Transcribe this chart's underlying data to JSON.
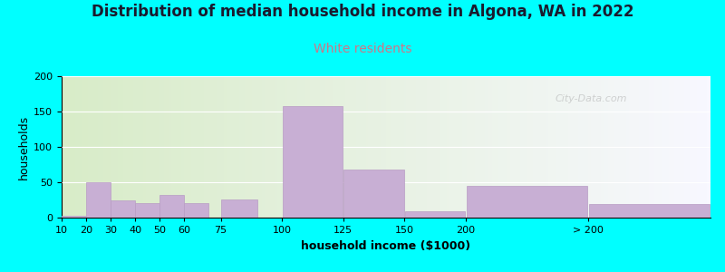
{
  "title": "Distribution of median household income in Algona, WA in 2022",
  "subtitle": "White residents",
  "xlabel": "household income ($1000)",
  "ylabel": "households",
  "background_color": "#00FFFF",
  "plot_bg_gradient_left": "#d8ecc8",
  "plot_bg_gradient_right": "#f8f8ff",
  "bar_color": "#c8afd4",
  "bar_edge_color": "#b89cc4",
  "categories": [
    "10",
    "20",
    "30",
    "40",
    "50",
    "60",
    "75",
    "100",
    "125",
    "150",
    "200",
    "> 200"
  ],
  "values": [
    3,
    50,
    24,
    21,
    32,
    21,
    26,
    158,
    68,
    9,
    45,
    19
  ],
  "bar_widths": [
    10,
    10,
    10,
    10,
    10,
    10,
    15,
    25,
    25,
    25,
    50,
    50
  ],
  "bar_lefts": [
    10,
    20,
    30,
    40,
    50,
    60,
    75,
    100,
    125,
    150,
    175,
    225
  ],
  "xlim": [
    10,
    275
  ],
  "ylim": [
    0,
    200
  ],
  "yticks": [
    0,
    50,
    100,
    150,
    200
  ],
  "title_fontsize": 12,
  "subtitle_fontsize": 10,
  "subtitle_color": "#cc7788",
  "axis_label_fontsize": 9,
  "tick_fontsize": 8,
  "watermark": "City-Data.com"
}
